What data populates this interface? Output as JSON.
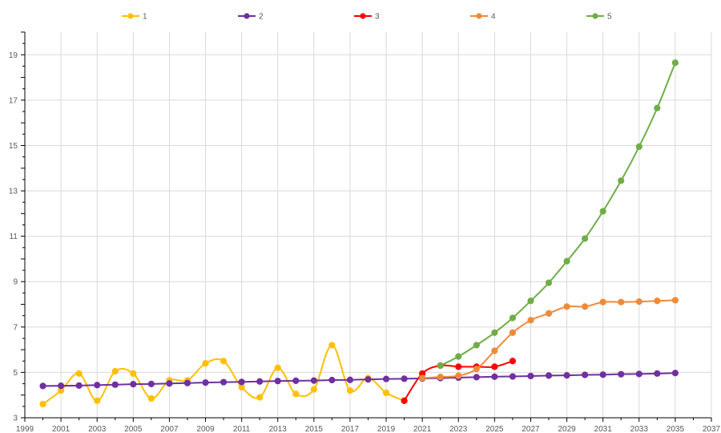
{
  "chart_data": {
    "type": "line",
    "title": "",
    "xlabel": "",
    "ylabel": "",
    "xlim": [
      1999,
      2037
    ],
    "ylim": [
      3,
      20
    ],
    "x_ticks": [
      "1999",
      "2001",
      "2003",
      "2005",
      "2007",
      "2009",
      "2011",
      "2013",
      "2015",
      "2017",
      "2019",
      "2021",
      "2023",
      "2025",
      "2027",
      "2029",
      "2031",
      "2033",
      "2035",
      "2037"
    ],
    "y_ticks": [
      "3",
      "5",
      "7",
      "9",
      "11",
      "13",
      "15",
      "17",
      "19"
    ],
    "grid": true,
    "legend_position": "top",
    "series": [
      {
        "name": "1",
        "color": "#FFC000",
        "smooth": true,
        "x": [
          2000,
          2001,
          2002,
          2003,
          2004,
          2005,
          2006,
          2007,
          2008,
          2009,
          2010,
          2011,
          2012,
          2013,
          2014,
          2015,
          2016,
          2017,
          2018,
          2019,
          2020
        ],
        "y": [
          3.6,
          4.2,
          4.95,
          3.75,
          5.05,
          4.95,
          3.85,
          4.65,
          4.65,
          5.4,
          5.5,
          4.35,
          3.9,
          5.2,
          4.05,
          4.25,
          6.2,
          4.2,
          4.75,
          4.1,
          3.75
        ]
      },
      {
        "name": "2",
        "color": "#7030A0",
        "smooth": false,
        "x": [
          2000,
          2001,
          2002,
          2003,
          2004,
          2005,
          2006,
          2007,
          2008,
          2009,
          2010,
          2011,
          2012,
          2013,
          2014,
          2015,
          2016,
          2017,
          2018,
          2019,
          2020,
          2021,
          2022,
          2023,
          2024,
          2025,
          2026,
          2027,
          2028,
          2029,
          2030,
          2031,
          2032,
          2033,
          2034,
          2035
        ],
        "y": [
          4.4,
          4.41,
          4.42,
          4.44,
          4.46,
          4.48,
          4.49,
          4.51,
          4.53,
          4.55,
          4.57,
          4.58,
          4.6,
          4.62,
          4.63,
          4.64,
          4.66,
          4.67,
          4.69,
          4.71,
          4.72,
          4.73,
          4.75,
          4.77,
          4.79,
          4.81,
          4.82,
          4.84,
          4.86,
          4.87,
          4.89,
          4.9,
          4.92,
          4.93,
          4.95,
          4.97
        ]
      },
      {
        "name": "3",
        "color": "#FF0000",
        "smooth": true,
        "x": [
          2020,
          2021,
          2022,
          2023,
          2024,
          2025,
          2026
        ],
        "y": [
          3.75,
          4.95,
          5.3,
          5.25,
          5.25,
          5.25,
          5.5
        ]
      },
      {
        "name": "4",
        "color": "#ED8B3B",
        "smooth": true,
        "x": [
          2021,
          2022,
          2023,
          2024,
          2025,
          2026,
          2027,
          2028,
          2029,
          2030,
          2031,
          2032,
          2033,
          2034,
          2035
        ],
        "y": [
          4.75,
          4.8,
          4.85,
          5.15,
          5.95,
          6.75,
          7.3,
          7.6,
          7.9,
          7.9,
          8.1,
          8.1,
          8.12,
          8.15,
          8.18
        ]
      },
      {
        "name": "5",
        "color": "#70AD47",
        "smooth": true,
        "x": [
          2022,
          2023,
          2024,
          2025,
          2026,
          2027,
          2028,
          2029,
          2030,
          2031,
          2032,
          2033,
          2034,
          2035
        ],
        "y": [
          5.3,
          5.7,
          6.2,
          6.75,
          7.4,
          8.15,
          8.95,
          9.9,
          10.9,
          12.1,
          13.45,
          14.95,
          16.65,
          18.65
        ]
      }
    ]
  }
}
